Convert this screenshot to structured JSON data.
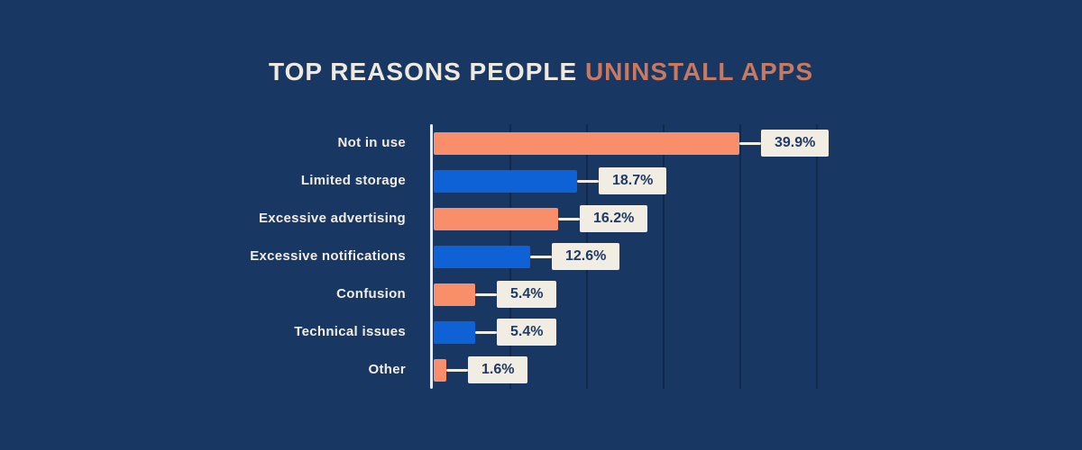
{
  "title": {
    "prefix": "TOP REASONS PEOPLE",
    "highlight": "UNINSTALL APPS"
  },
  "colors": {
    "background": "#183763",
    "cream": "#F2EDE2",
    "title_prefix": "#EFEAE0",
    "title_highlight": "#C8795F",
    "bar_orange": "#F98E6A",
    "bar_blue": "#0E62D6",
    "value_text_navy": "#1F3A66",
    "gridline": "#12294B"
  },
  "chart_data": {
    "type": "bar",
    "orientation": "horizontal",
    "title": "TOP REASONS PEOPLE UNINSTALL APPS",
    "categories": [
      "Not in use",
      "Limited storage",
      "Excessive advertising",
      "Excessive notifications",
      "Confusion",
      "Technical issues",
      "Other"
    ],
    "values": [
      39.9,
      18.7,
      16.2,
      12.6,
      5.4,
      5.4,
      1.6
    ],
    "value_labels": [
      "39.9%",
      "18.7%",
      "16.2%",
      "12.6%",
      "5.4%",
      "5.4%",
      "1.6%"
    ],
    "bar_colors": [
      "#F98E6A",
      "#0E62D6",
      "#F98E6A",
      "#0E62D6",
      "#F98E6A",
      "#0E62D6",
      "#F98E6A"
    ],
    "xlabel": "",
    "ylabel": "",
    "xlim": [
      0,
      50
    ],
    "gridline_interval_pct": 10,
    "grid": true,
    "legend": false
  }
}
